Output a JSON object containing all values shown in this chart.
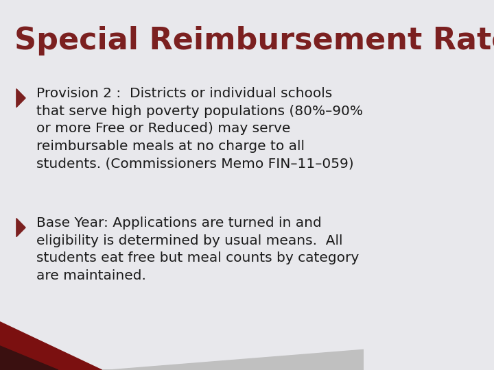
{
  "title": "Special Reimbursement Rate",
  "title_color": "#7B2020",
  "title_fontsize": 32,
  "title_bold": true,
  "background_color": "#E8E8EC",
  "bullet_color": "#7B2020",
  "text_color": "#1a1a1a",
  "bullet1_lines": [
    "Provision 2 :  Districts or individual schools",
    "that serve high poverty populations (80%–90%",
    "or more Free or Reduced) may serve",
    "reimbursable meals at no charge to all",
    "students. (Commissioners Memo FIN–11–059)"
  ],
  "bullet2_lines": [
    "Base Year: Applications are turned in and",
    "eligibility is determined by usual means.  All",
    "students eat free but meal counts by category",
    "are maintained."
  ],
  "footer_color1": "#7B1010",
  "footer_color2": "#3a1010",
  "footer_color3": "#c0c0c0"
}
